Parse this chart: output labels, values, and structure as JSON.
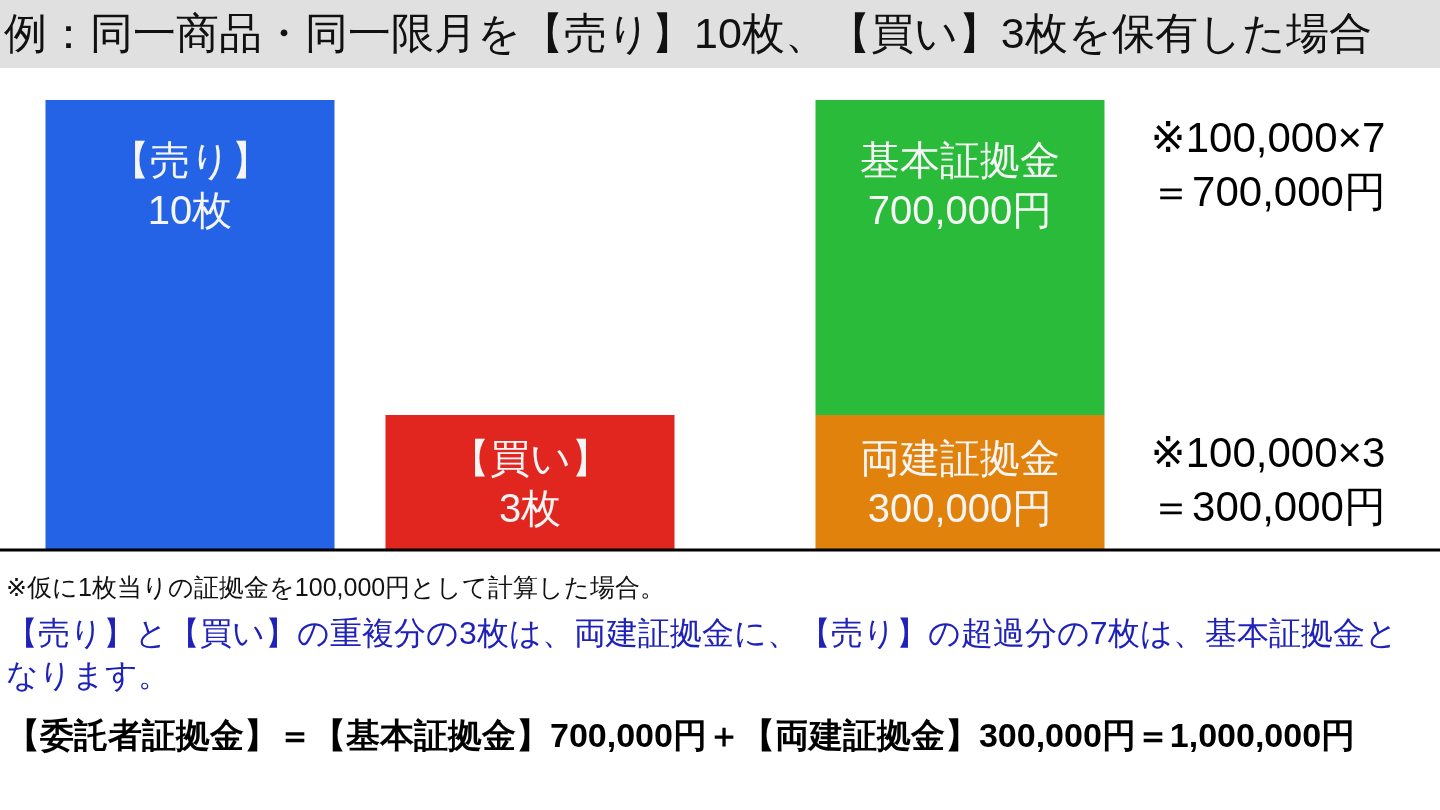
{
  "chart_data": [
    {
      "type": "bar",
      "title": "例：同一商品・同一限月を【売り】10枚、【買い】3枚を保有した場合",
      "categories": [
        null,
        null
      ],
      "values": [
        10,
        3
      ],
      "colors": [
        "#2563e6",
        "#e0261f"
      ],
      "value_labels": [
        "【売り】\n10枚",
        "【買い】\n3枚"
      ]
    },
    {
      "type": "bar",
      "categories": [
        null
      ],
      "stacked": true,
      "series": [
        {
          "color": "#e0820c",
          "values": [
            300000
          ],
          "value_labels": [
            "両建証拠金\n300,000円"
          ]
        },
        {
          "color": "#2abb3a",
          "values": [
            700000
          ],
          "value_labels": [
            "基本証拠金\n700,000円"
          ]
        }
      ],
      "annotations": [
        "※100,000×7\n＝700,000円",
        "※100,000×3\n＝300,000円",
        "※仮に1枚当りの証拠金を100,000円として計算した場合。",
        "【売り】と【買い】の重複分の3枚は、両建証拠金に、【売り】の超過分の7枚は、基本証拠金となります。",
        "【委託者証拠金】＝【基本証拠金】700,000円＋【両建証拠金】300,000円＝1,000,000円"
      ]
    }
  ]
}
